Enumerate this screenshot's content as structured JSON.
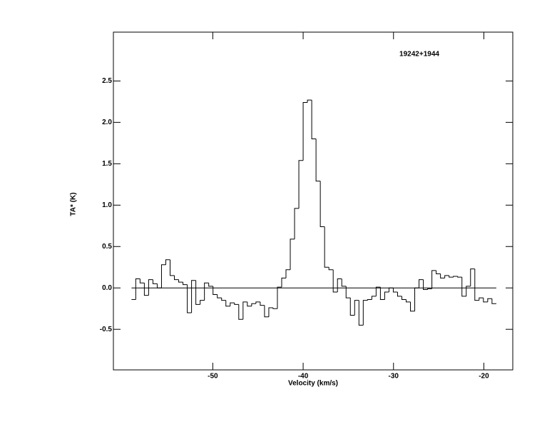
{
  "chart_data": {
    "type": "step",
    "annotation": "19242+1944",
    "x_label": "Velocity (km/s)",
    "y_label": "TA* (K)",
    "xlim": [
      -61,
      -16.8
    ],
    "ylim": [
      -0.99,
      3.09
    ],
    "xticks": [
      -50,
      -40,
      -30,
      -20
    ],
    "yticks": [
      {
        "value": -0.5,
        "label": "-0.5"
      },
      {
        "value": 0,
        "label": "0.0"
      },
      0.5,
      {
        "value": 1,
        "label": "1.0"
      },
      1.5,
      {
        "value": 2,
        "label": "2.0"
      },
      2.5
    ],
    "zero_line": true,
    "color": "#000000",
    "x": [
      -58.76,
      -58.29,
      -57.81,
      -57.34,
      -56.86,
      -56.39,
      -55.91,
      -55.44,
      -54.96,
      -54.49,
      -54.01,
      -53.54,
      -53.06,
      -52.59,
      -52.11,
      -51.64,
      -51.16,
      -50.69,
      -50.21,
      -49.74,
      -49.26,
      -48.79,
      -48.31,
      -47.84,
      -47.36,
      -46.89,
      -46.41,
      -45.94,
      -45.46,
      -44.99,
      -44.51,
      -44.04,
      -43.56,
      -43.09,
      -42.61,
      -42.14,
      -41.66,
      -41.19,
      -40.71,
      -40.24,
      -39.76,
      -39.29,
      -38.81,
      -38.34,
      -37.86,
      -37.39,
      -36.91,
      -36.44,
      -35.96,
      -35.49,
      -35.01,
      -34.54,
      -34.06,
      -33.59,
      -33.11,
      -32.64,
      -32.16,
      -31.69,
      -31.21,
      -30.74,
      -30.26,
      -29.79,
      -29.31,
      -28.84,
      -28.36,
      -27.89,
      -27.41,
      -26.94,
      -26.46,
      -25.99,
      -25.51,
      -25.04,
      -24.56,
      -24.09,
      -23.61,
      -23.14,
      -22.66,
      -22.19,
      -21.71,
      -21.24,
      -20.76,
      -20.29,
      -19.81,
      -19.34,
      -18.86
    ],
    "values": [
      -0.14,
      0.11,
      0.06,
      -0.09,
      0.1,
      0.05,
      0.0,
      0.28,
      0.34,
      0.15,
      0.1,
      0.07,
      0.04,
      -0.3,
      0.09,
      -0.2,
      -0.15,
      0.06,
      0.02,
      -0.08,
      -0.12,
      -0.15,
      -0.22,
      -0.18,
      -0.2,
      -0.38,
      -0.17,
      -0.22,
      -0.19,
      -0.17,
      -0.21,
      -0.35,
      -0.24,
      -0.25,
      0.01,
      0.12,
      0.22,
      0.59,
      0.96,
      1.54,
      2.24,
      2.27,
      1.8,
      1.29,
      0.74,
      0.25,
      0.22,
      -0.05,
      0.11,
      0.02,
      -0.12,
      -0.33,
      -0.15,
      -0.45,
      -0.15,
      -0.14,
      -0.1,
      0.01,
      -0.14,
      -0.05,
      0.0,
      -0.05,
      -0.1,
      -0.14,
      -0.17,
      -0.28,
      0.0,
      0.1,
      -0.02,
      -0.01,
      0.21,
      0.17,
      0.12,
      0.15,
      0.13,
      0.14,
      0.13,
      -0.1,
      0.02,
      0.23,
      -0.15,
      -0.12,
      -0.17,
      -0.13,
      -0.19
    ]
  }
}
